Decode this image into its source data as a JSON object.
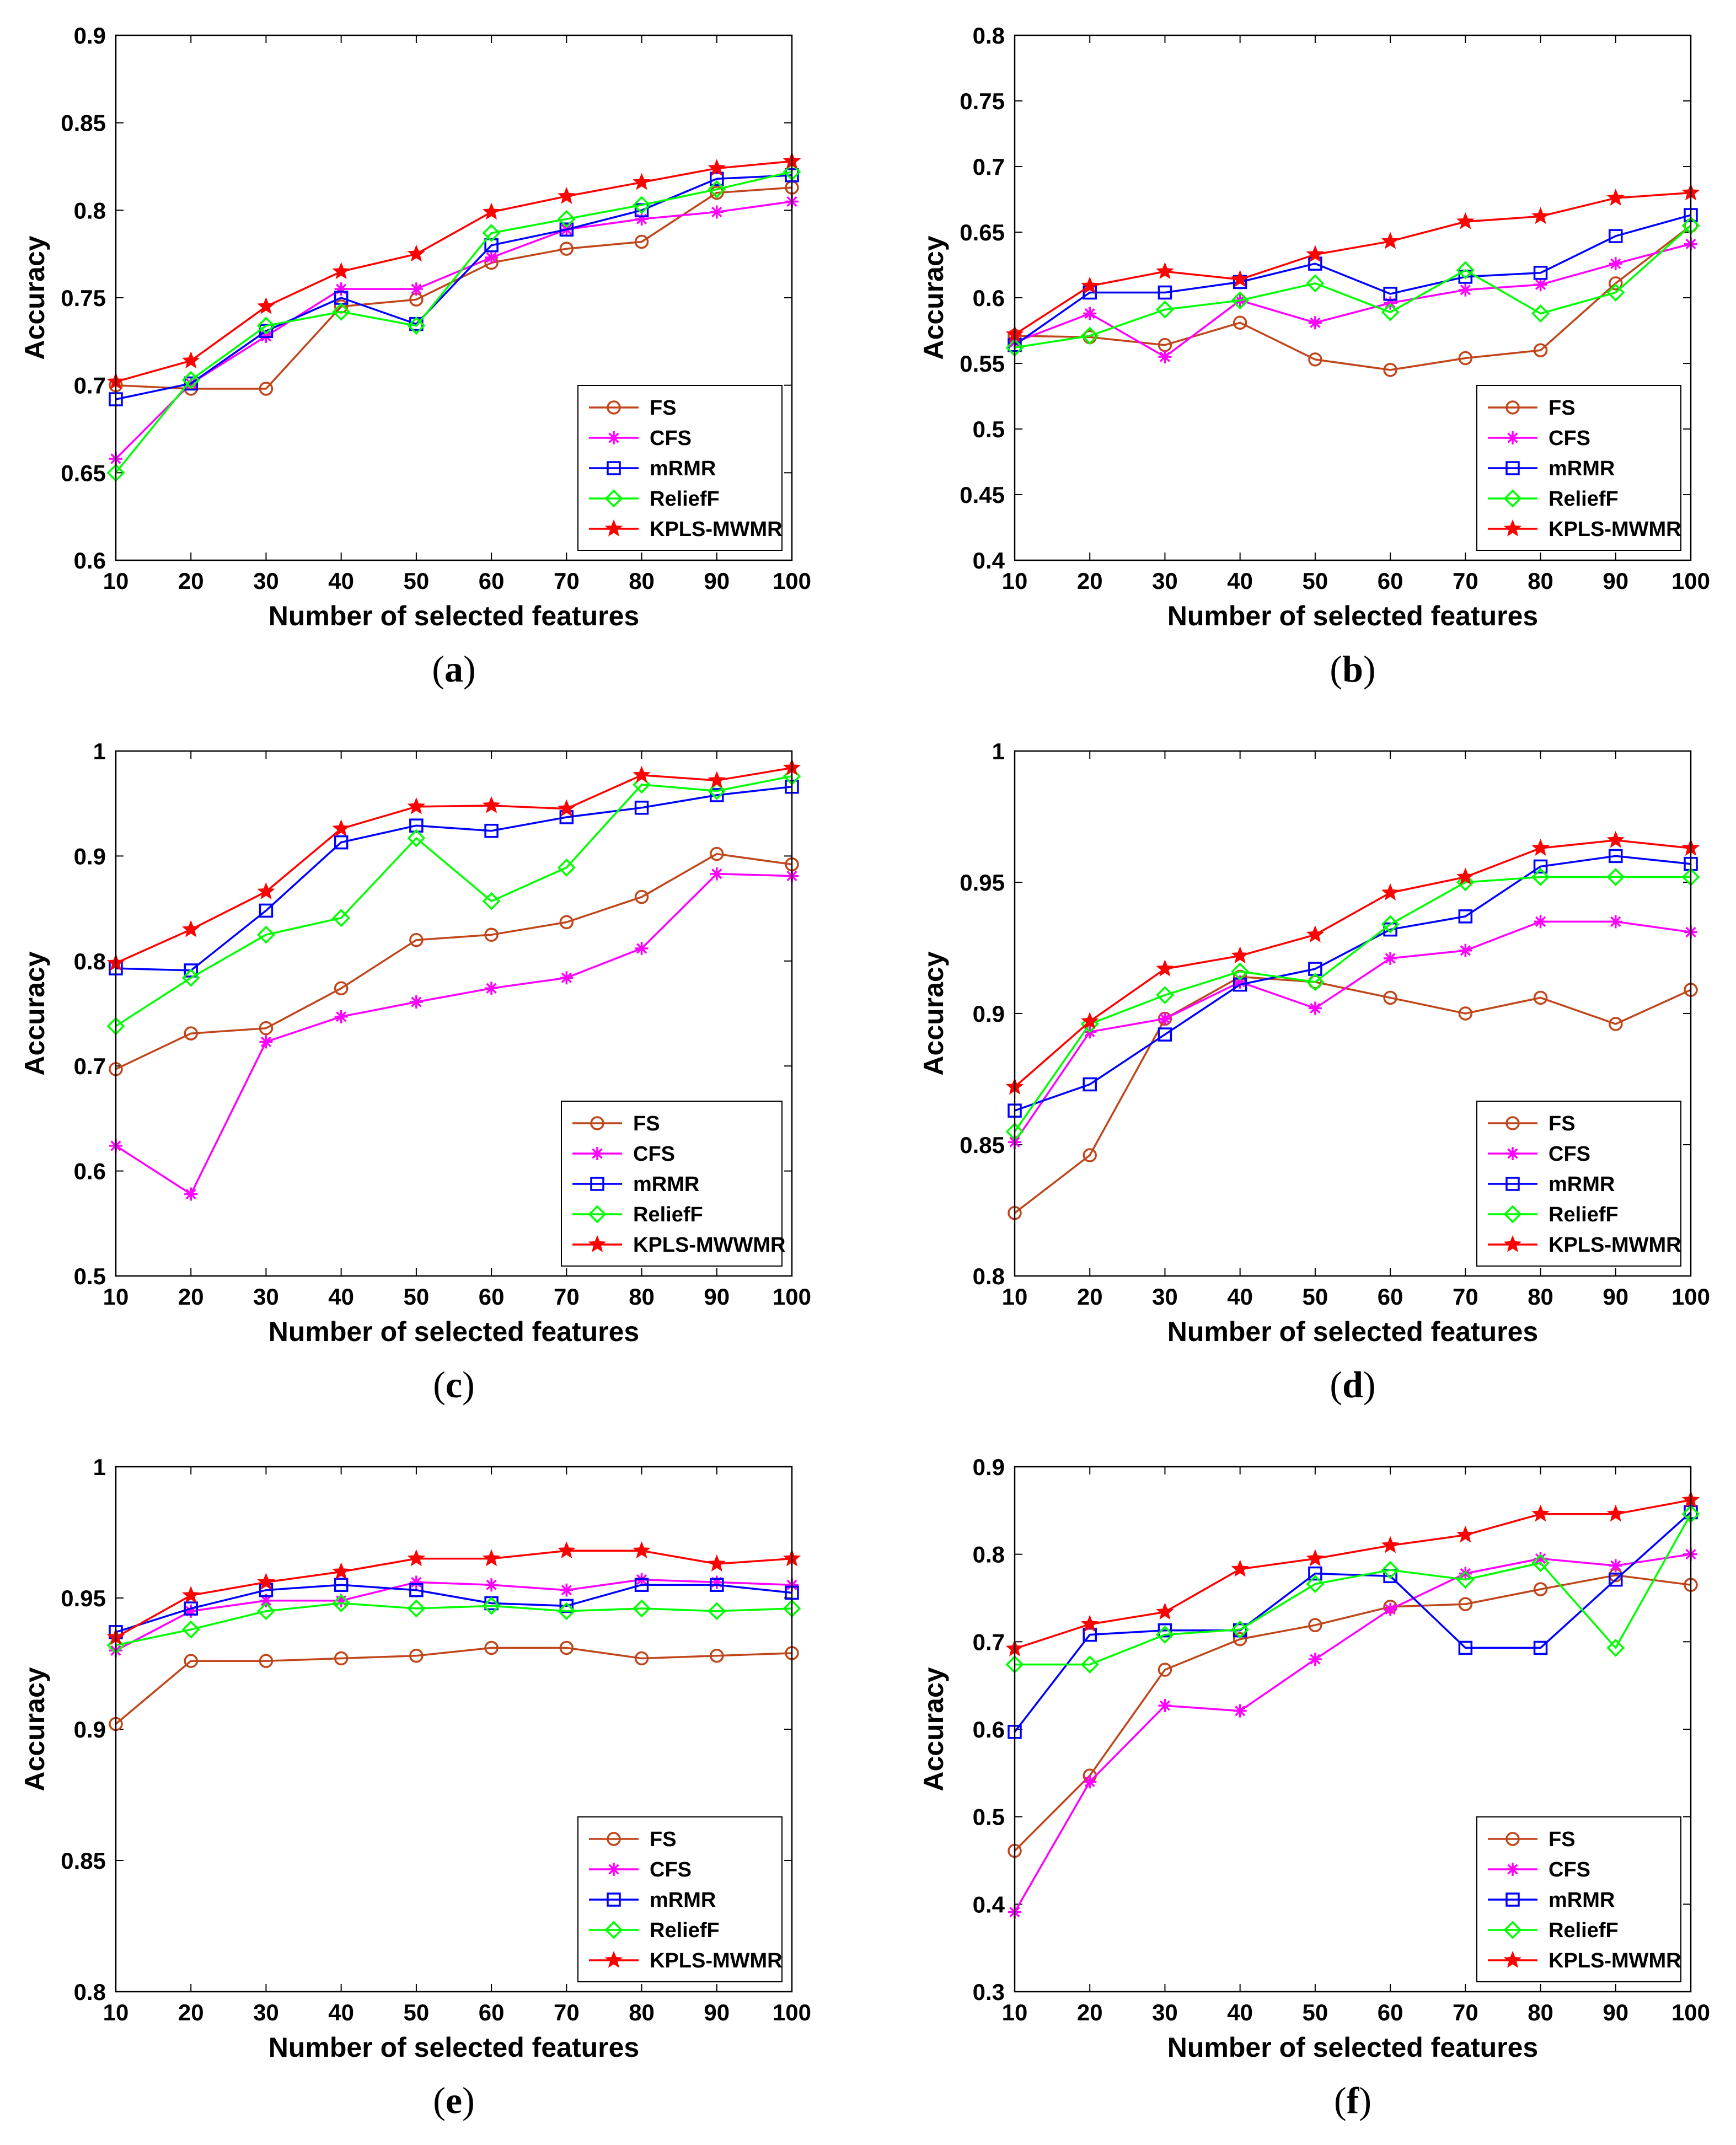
{
  "figure": {
    "xlabel": "Number of selected features",
    "ylabel": "Accuracy",
    "x_ticks": [
      "10",
      "20",
      "30",
      "40",
      "50",
      "60",
      "70",
      "80",
      "90",
      "100"
    ]
  },
  "styles": {
    "FS": {
      "color": "#c0461b",
      "marker": "circle"
    },
    "CFS": {
      "color": "#ff00ff",
      "marker": "asterisk"
    },
    "mRMR": {
      "color": "#0000ff",
      "marker": "square"
    },
    "ReliefF": {
      "color": "#00ff00",
      "marker": "diamond"
    },
    "KPLS-MWMR": {
      "color": "#ff0000",
      "marker": "star"
    },
    "KPLS-MWWMR": {
      "color": "#ff0000",
      "marker": "star"
    }
  },
  "chart_data": [
    {
      "panel": "a",
      "caption": {
        "open": "(",
        "letter": "a",
        "close": ")"
      },
      "type": "line",
      "xlabel": "Number of selected features",
      "ylabel": "Accuracy",
      "x": [
        10,
        20,
        30,
        40,
        50,
        60,
        70,
        80,
        90,
        100
      ],
      "ylim": [
        0.6,
        0.9
      ],
      "yticks": [
        "0.6",
        "0.65",
        "0.7",
        "0.75",
        "0.8",
        "0.85",
        "0.9"
      ],
      "legend_position": "bottom-right",
      "series": [
        {
          "name": "FS",
          "values": [
            0.7,
            0.698,
            0.698,
            0.745,
            0.749,
            0.77,
            0.778,
            0.782,
            0.81,
            0.813
          ]
        },
        {
          "name": "CFS",
          "values": [
            0.658,
            0.701,
            0.728,
            0.755,
            0.755,
            0.773,
            0.789,
            0.795,
            0.799,
            0.805
          ]
        },
        {
          "name": "mRMR",
          "values": [
            0.692,
            0.701,
            0.731,
            0.75,
            0.735,
            0.78,
            0.789,
            0.8,
            0.818,
            0.82
          ]
        },
        {
          "name": "ReliefF",
          "values": [
            0.65,
            0.703,
            0.734,
            0.742,
            0.734,
            0.787,
            0.795,
            0.803,
            0.812,
            0.822
          ]
        },
        {
          "name": "KPLS-MWMR",
          "values": [
            0.702,
            0.714,
            0.745,
            0.765,
            0.775,
            0.799,
            0.808,
            0.816,
            0.824,
            0.828
          ]
        }
      ]
    },
    {
      "panel": "b",
      "caption": {
        "open": "(",
        "letter": "b",
        "close": ")"
      },
      "type": "line",
      "xlabel": "Number of selected features",
      "ylabel": "Accuracy",
      "x": [
        10,
        20,
        30,
        40,
        50,
        60,
        70,
        80,
        90,
        100
      ],
      "ylim": [
        0.4,
        0.8
      ],
      "yticks": [
        "0.4",
        "0.45",
        "0.5",
        "0.55",
        "0.6",
        "0.65",
        "0.7",
        "0.75",
        "0.8"
      ],
      "legend_position": "bottom-right",
      "series": [
        {
          "name": "FS",
          "values": [
            0.571,
            0.57,
            0.564,
            0.581,
            0.553,
            0.545,
            0.554,
            0.56,
            0.611,
            0.655
          ]
        },
        {
          "name": "CFS",
          "values": [
            0.566,
            0.588,
            0.555,
            0.598,
            0.581,
            0.596,
            0.606,
            0.61,
            0.626,
            0.641
          ]
        },
        {
          "name": "mRMR",
          "values": [
            0.564,
            0.604,
            0.604,
            0.612,
            0.626,
            0.603,
            0.616,
            0.619,
            0.647,
            0.663
          ]
        },
        {
          "name": "ReliefF",
          "values": [
            0.562,
            0.571,
            0.591,
            0.598,
            0.611,
            0.589,
            0.621,
            0.588,
            0.604,
            0.655
          ]
        },
        {
          "name": "KPLS-MWMR",
          "values": [
            0.572,
            0.609,
            0.62,
            0.614,
            0.633,
            0.643,
            0.658,
            0.662,
            0.676,
            0.68
          ]
        }
      ]
    },
    {
      "panel": "c",
      "caption": {
        "open": "(",
        "letter": "c",
        "close": ")"
      },
      "type": "line",
      "xlabel": "Number of selected features",
      "ylabel": "Accuracy",
      "x": [
        10,
        20,
        30,
        40,
        50,
        60,
        70,
        80,
        90,
        100
      ],
      "ylim": [
        0.5,
        1.0
      ],
      "yticks": [
        "0.5",
        "0.6",
        "0.7",
        "0.8",
        "0.9",
        "1"
      ],
      "legend_position": "bottom-right",
      "series": [
        {
          "name": "FS",
          "values": [
            0.697,
            0.731,
            0.736,
            0.774,
            0.82,
            0.825,
            0.837,
            0.861,
            0.902,
            0.892
          ]
        },
        {
          "name": "CFS",
          "values": [
            0.624,
            0.578,
            0.723,
            0.747,
            0.761,
            0.774,
            0.784,
            0.812,
            0.883,
            0.881
          ]
        },
        {
          "name": "mRMR",
          "values": [
            0.793,
            0.791,
            0.848,
            0.913,
            0.929,
            0.924,
            0.937,
            0.946,
            0.958,
            0.966
          ]
        },
        {
          "name": "ReliefF",
          "values": [
            0.738,
            0.784,
            0.825,
            0.841,
            0.917,
            0.857,
            0.889,
            0.968,
            0.962,
            0.976
          ]
        },
        {
          "name": "KPLS-MWWMR",
          "values": [
            0.798,
            0.83,
            0.866,
            0.926,
            0.947,
            0.948,
            0.945,
            0.977,
            0.972,
            0.984
          ]
        }
      ]
    },
    {
      "panel": "d",
      "caption": {
        "open": "(",
        "letter": "d",
        "close": ")"
      },
      "type": "line",
      "xlabel": "Number of selected features",
      "ylabel": "Accuracy",
      "x": [
        10,
        20,
        30,
        40,
        50,
        60,
        70,
        80,
        90,
        100
      ],
      "ylim": [
        0.8,
        1.0
      ],
      "yticks": [
        "0.8",
        "0.85",
        "0.9",
        "0.95",
        "1"
      ],
      "legend_position": "bottom-right",
      "series": [
        {
          "name": "FS",
          "values": [
            0.824,
            0.846,
            0.898,
            0.914,
            0.912,
            0.906,
            0.9,
            0.906,
            0.896,
            0.909
          ]
        },
        {
          "name": "CFS",
          "values": [
            0.851,
            0.893,
            0.898,
            0.912,
            0.902,
            0.921,
            0.924,
            0.935,
            0.935,
            0.931
          ]
        },
        {
          "name": "mRMR",
          "values": [
            0.863,
            0.873,
            0.892,
            0.911,
            0.917,
            0.932,
            0.937,
            0.956,
            0.96,
            0.957
          ]
        },
        {
          "name": "ReliefF",
          "values": [
            0.855,
            0.896,
            0.907,
            0.916,
            0.912,
            0.934,
            0.95,
            0.952,
            0.952,
            0.952
          ]
        },
        {
          "name": "KPLS-MWMR",
          "values": [
            0.872,
            0.897,
            0.917,
            0.922,
            0.93,
            0.946,
            0.952,
            0.963,
            0.966,
            0.963
          ]
        }
      ]
    },
    {
      "panel": "e",
      "caption": {
        "open": "(",
        "letter": "e",
        "close": ")"
      },
      "type": "line",
      "xlabel": "Number of selected features",
      "ylabel": "Accuracy",
      "x": [
        10,
        20,
        30,
        40,
        50,
        60,
        70,
        80,
        90,
        100
      ],
      "ylim": [
        0.8,
        1.0
      ],
      "yticks": [
        "0.8",
        "0.85",
        "0.9",
        "0.95",
        "1"
      ],
      "legend_position": "bottom-right",
      "series": [
        {
          "name": "FS",
          "values": [
            0.902,
            0.926,
            0.926,
            0.927,
            0.928,
            0.931,
            0.931,
            0.927,
            0.928,
            0.929
          ]
        },
        {
          "name": "CFS",
          "values": [
            0.93,
            0.945,
            0.949,
            0.949,
            0.956,
            0.955,
            0.953,
            0.957,
            0.956,
            0.955
          ]
        },
        {
          "name": "mRMR",
          "values": [
            0.937,
            0.946,
            0.953,
            0.955,
            0.953,
            0.948,
            0.947,
            0.955,
            0.955,
            0.952
          ]
        },
        {
          "name": "ReliefF",
          "values": [
            0.932,
            0.938,
            0.945,
            0.948,
            0.946,
            0.947,
            0.945,
            0.946,
            0.945,
            0.946
          ]
        },
        {
          "name": "KPLS-MWMR",
          "values": [
            0.935,
            0.951,
            0.956,
            0.96,
            0.965,
            0.965,
            0.968,
            0.968,
            0.963,
            0.965
          ]
        }
      ]
    },
    {
      "panel": "f",
      "caption": {
        "open": "(",
        "letter": "f",
        "close": ")"
      },
      "type": "line",
      "xlabel": "Number of selected features",
      "ylabel": "Accuracy",
      "x": [
        10,
        20,
        30,
        40,
        50,
        60,
        70,
        80,
        90,
        100
      ],
      "ylim": [
        0.3,
        0.9
      ],
      "yticks": [
        "0.3",
        "0.4",
        "0.5",
        "0.6",
        "0.7",
        "0.8",
        "0.9"
      ],
      "legend_position": "bottom-right",
      "series": [
        {
          "name": "FS",
          "values": [
            0.461,
            0.547,
            0.668,
            0.703,
            0.719,
            0.74,
            0.743,
            0.76,
            0.776,
            0.765
          ]
        },
        {
          "name": "CFS",
          "values": [
            0.391,
            0.54,
            0.627,
            0.621,
            0.68,
            0.737,
            0.778,
            0.795,
            0.787,
            0.8
          ]
        },
        {
          "name": "mRMR",
          "values": [
            0.597,
            0.708,
            0.713,
            0.713,
            0.778,
            0.775,
            0.693,
            0.693,
            0.771,
            0.848
          ]
        },
        {
          "name": "ReliefF",
          "values": [
            0.674,
            0.674,
            0.708,
            0.714,
            0.766,
            0.782,
            0.771,
            0.79,
            0.693,
            0.846
          ]
        },
        {
          "name": "KPLS-MWMR",
          "values": [
            0.692,
            0.72,
            0.734,
            0.783,
            0.795,
            0.81,
            0.822,
            0.846,
            0.846,
            0.862
          ]
        }
      ]
    }
  ]
}
